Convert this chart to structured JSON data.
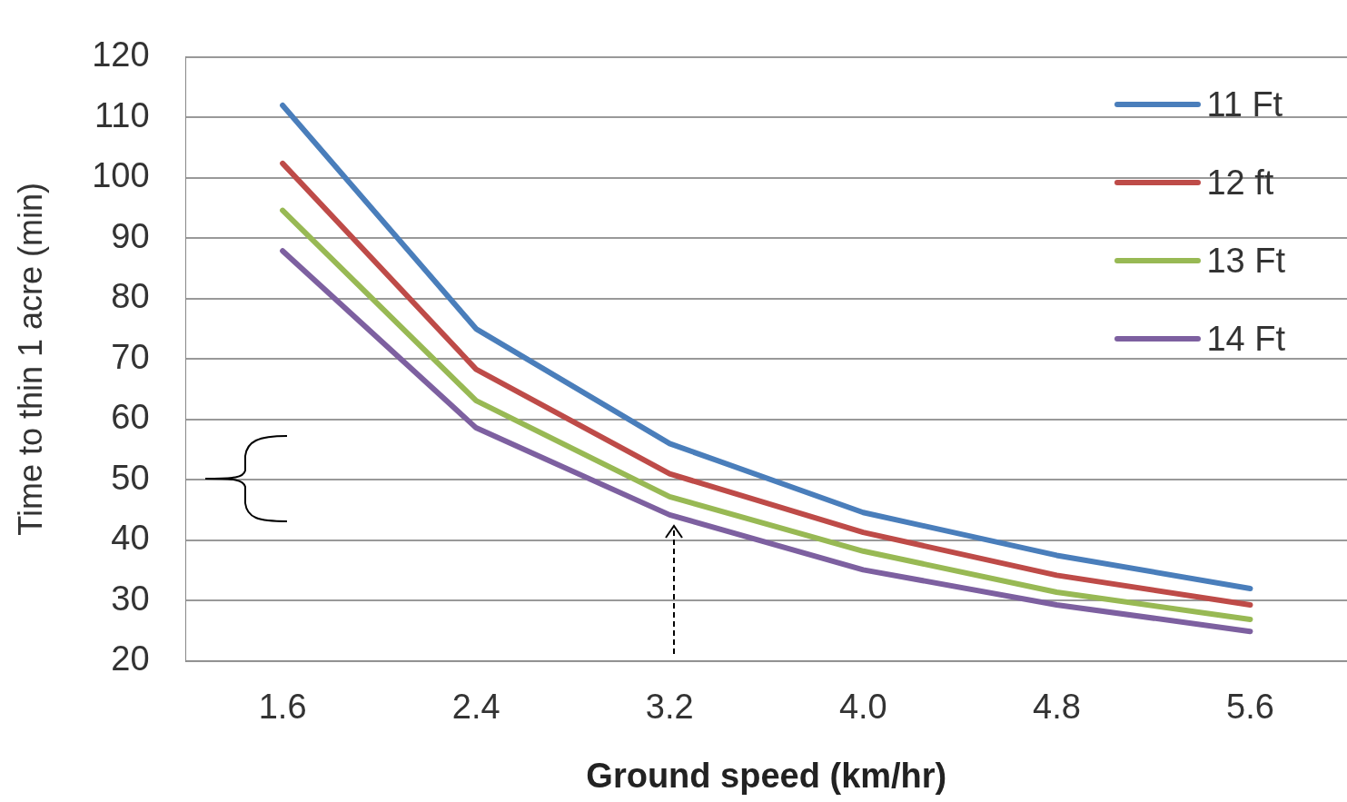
{
  "chart_data": {
    "type": "line",
    "xlabel": "Ground speed (km/hr)",
    "ylabel": "Time to thin 1 acre (min)",
    "categories": [
      "1.6",
      "2.4",
      "3.2",
      "4.0",
      "4.8",
      "5.6"
    ],
    "series": [
      {
        "name": "11 Ft",
        "color": "#4a7ebb",
        "values": [
          112,
          75,
          56,
          44.6,
          37.5,
          32
        ]
      },
      {
        "name": "12 ft",
        "color": "#be4b48",
        "values": [
          102.4,
          68.3,
          51,
          41.3,
          34.2,
          29.3
        ]
      },
      {
        "name": "13 Ft",
        "color": "#98b954",
        "values": [
          94.6,
          63.1,
          47.2,
          38.2,
          31.4,
          26.9
        ]
      },
      {
        "name": "14 Ft",
        "color": "#7d60a0",
        "values": [
          87.9,
          58.6,
          44.2,
          35.1,
          29.3,
          24.9
        ]
      }
    ],
    "ylim": [
      20,
      120
    ],
    "yticks": [
      20,
      30,
      40,
      50,
      60,
      70,
      80,
      90,
      100,
      110,
      120
    ],
    "grid": "y",
    "legend": "top right",
    "marker": "none",
    "line_style": "solid"
  }
}
